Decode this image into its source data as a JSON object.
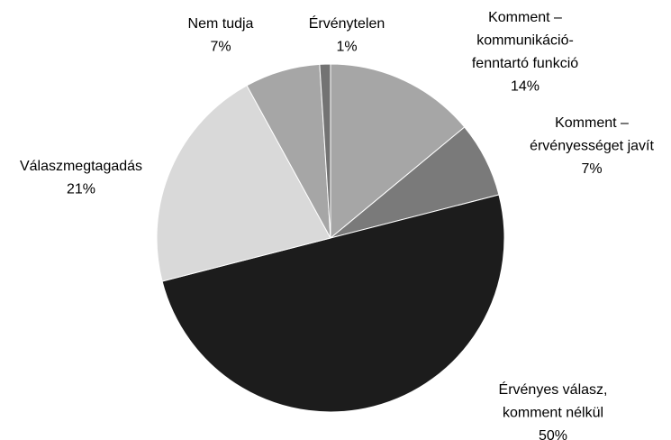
{
  "chart_data": {
    "type": "pie",
    "categories": [
      "Komment –\nkommunikáció-\nfenntartó funkció",
      "Komment –\nérvényességet javít",
      "Érvényes válasz,\nkomment nélkül",
      "Válaszmegtagadás",
      "Nem tudja",
      "Érvénytelen"
    ],
    "values": [
      14,
      7,
      50,
      21,
      7,
      1
    ],
    "value_labels": [
      "14%",
      "7%",
      "50%",
      "21%",
      "7%",
      "1%"
    ],
    "colors": [
      "#a6a6a6",
      "#7a7a7a",
      "#1c1c1c",
      "#d9d9d9",
      "#a6a6a6",
      "#737373"
    ]
  }
}
